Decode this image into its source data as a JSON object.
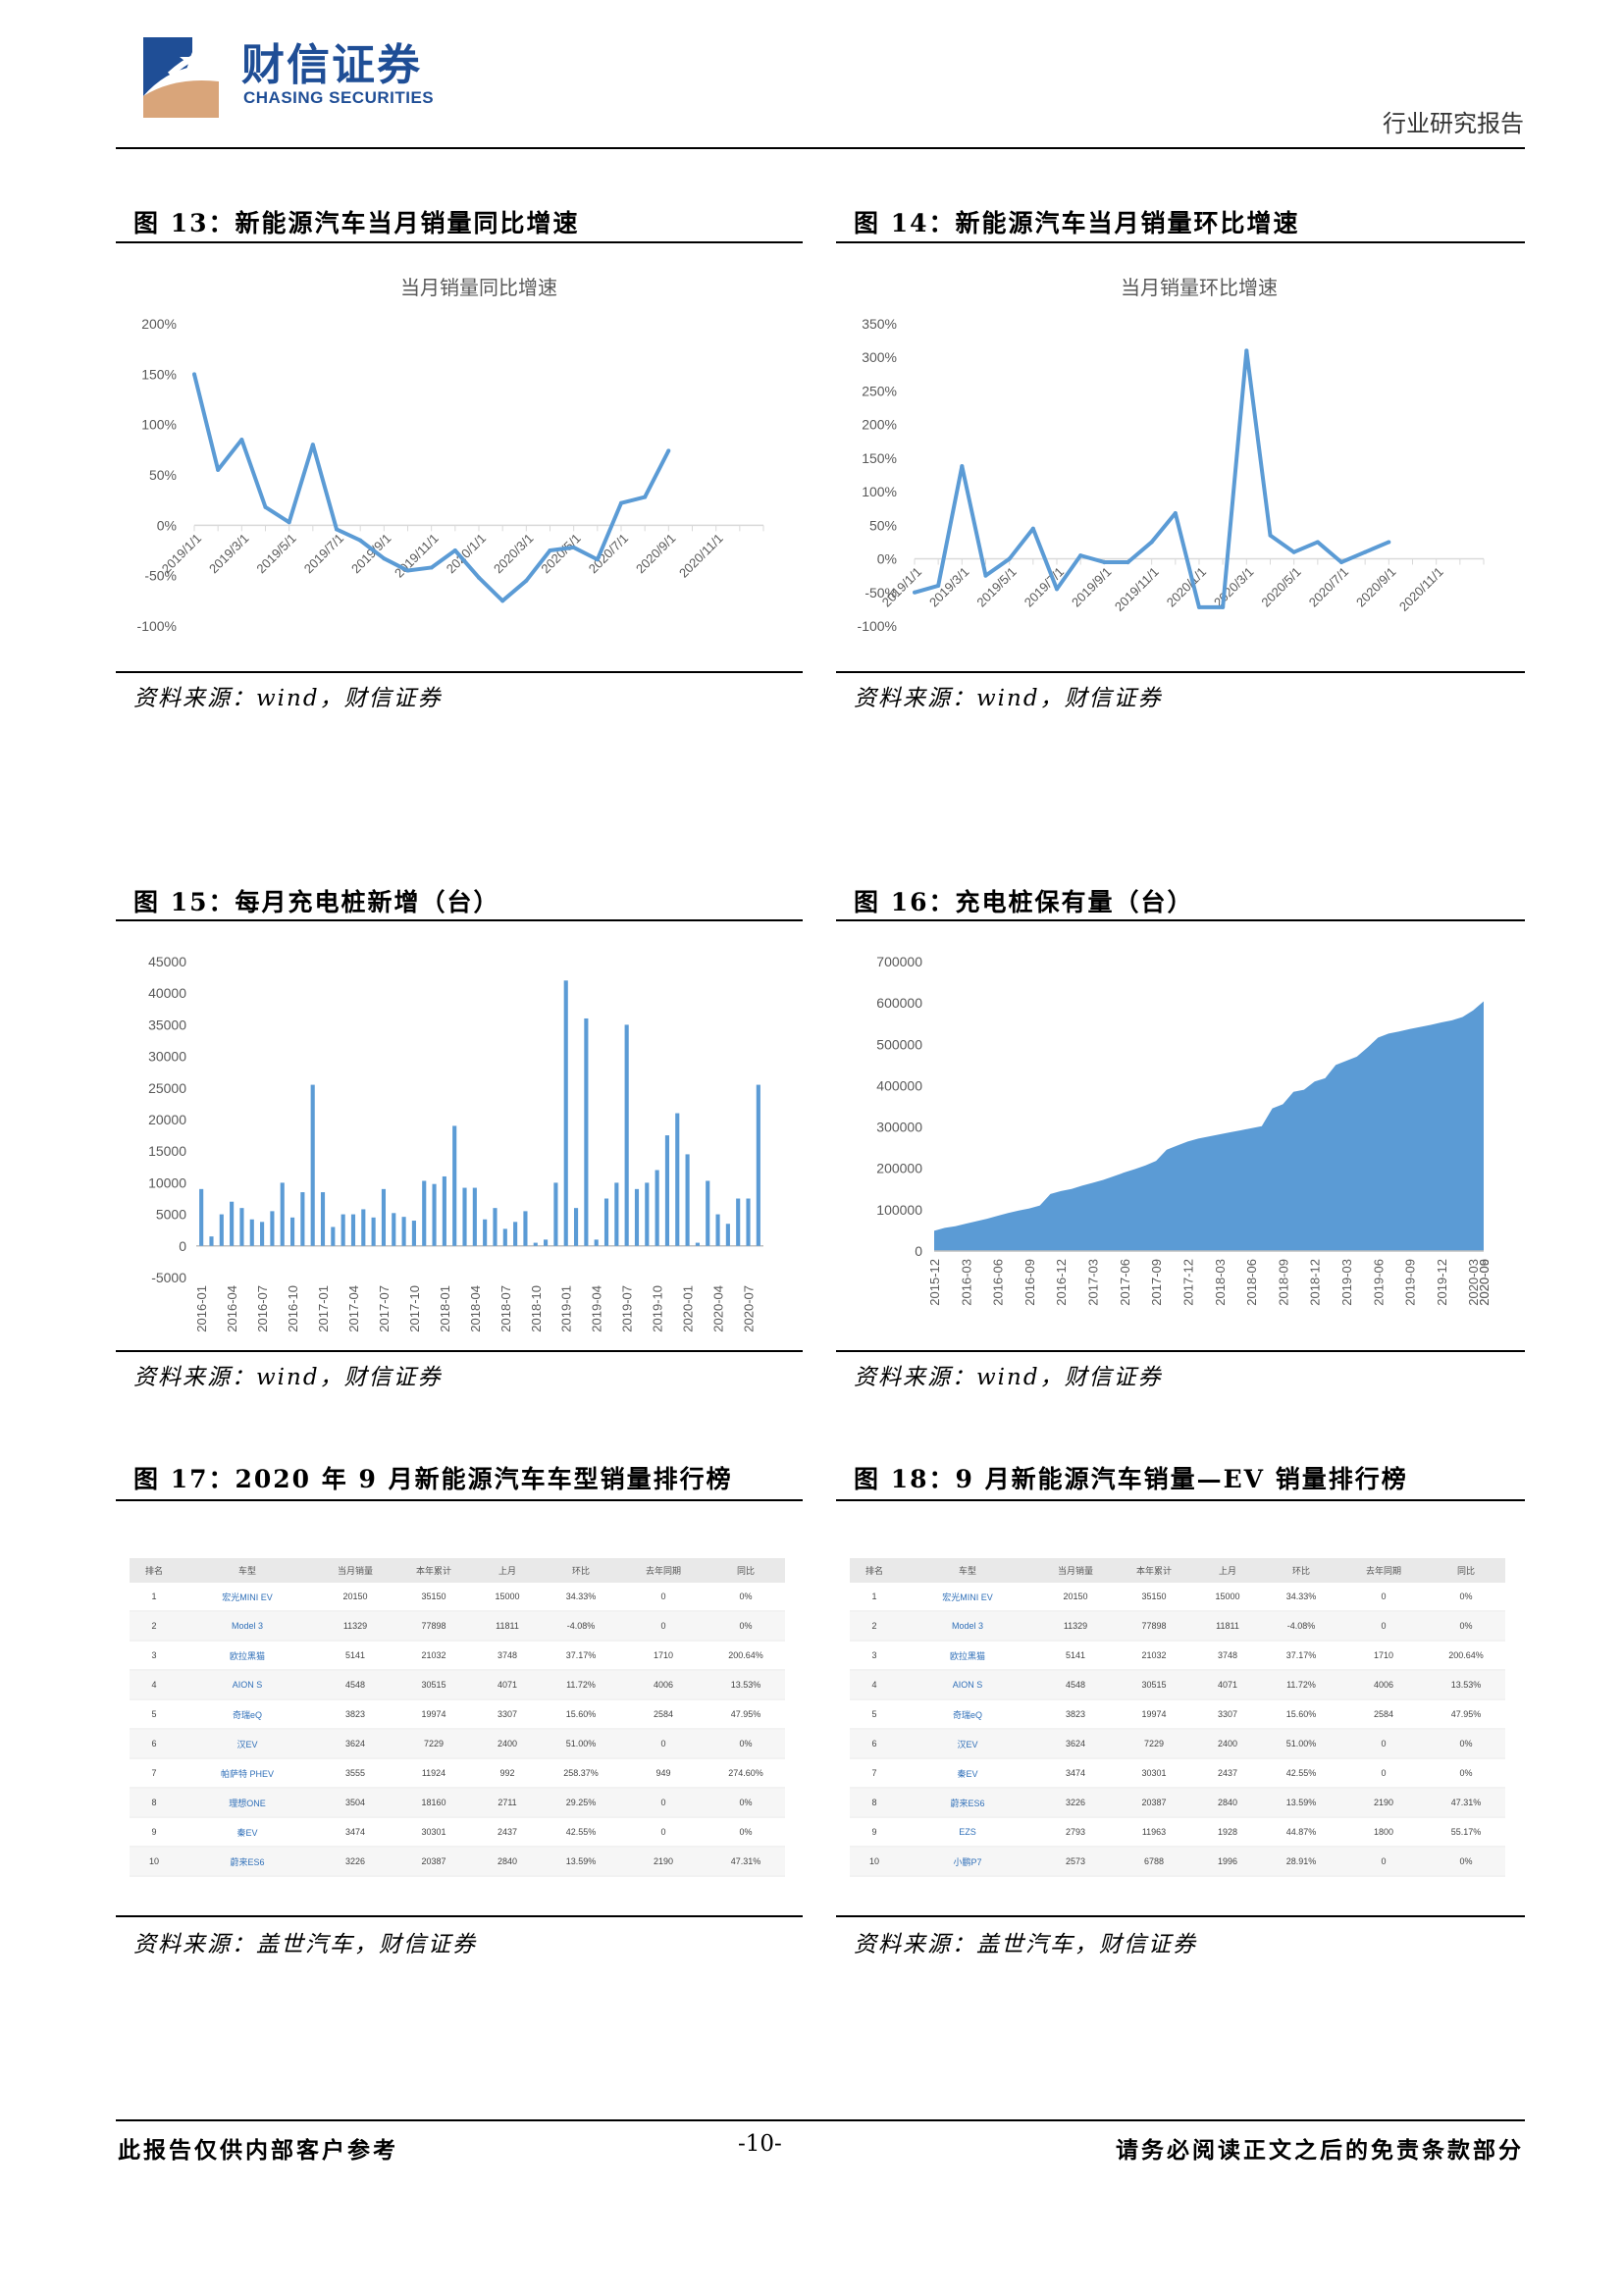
{
  "header": {
    "logo_cn": "财信证券",
    "logo_en": "CHASING SECURITIES",
    "report_type": "行业研究报告"
  },
  "figures": {
    "fig13": {
      "title": "图 13：新能源汽车当月销量同比增速",
      "source": "资料来源：wind，财信证券"
    },
    "fig14": {
      "title": "图 14：新能源汽车当月销量环比增速",
      "source": "资料来源：wind，财信证券"
    },
    "fig15": {
      "title": "图 15：每月充电桩新增（台）",
      "source": "资料来源：wind，财信证券"
    },
    "fig16": {
      "title": "图 16：充电桩保有量（台）",
      "source": "资料来源：wind，财信证券"
    },
    "fig17": {
      "title": "图 17：2020 年 9 月新能源汽车车型销量排行榜",
      "source": "资料来源：盖世汽车，财信证券"
    },
    "fig18": {
      "title": "图 18：9 月新能源汽车销量—EV 销量排行榜",
      "source": "资料来源：盖世汽车，财信证券"
    }
  },
  "chart_data": [
    {
      "id": "fig13",
      "type": "line",
      "title": "当月销量同比增速",
      "color": "#5b9bd5",
      "ylim": [
        -100,
        200
      ],
      "yticks": [
        -100,
        -50,
        0,
        50,
        100,
        150,
        200
      ],
      "ytick_labels": [
        "-100%",
        "-50%",
        "0%",
        "50%",
        "100%",
        "150%",
        "200%"
      ],
      "xtick_labels": [
        "2019/1/1",
        "2019/3/1",
        "2019/5/1",
        "2019/7/1",
        "2019/9/1",
        "2019/11/1",
        "2020/1/1",
        "2020/3/1",
        "2020/5/1",
        "2020/7/1",
        "2020/9/1",
        "2020/11/1"
      ],
      "n_slots": 24,
      "values": [
        150,
        55,
        85,
        18,
        3,
        80,
        -4,
        -15,
        -33,
        -45,
        -42,
        -25,
        -52,
        -75,
        -55,
        -25,
        -22,
        -34,
        22,
        28,
        74
      ]
    },
    {
      "id": "fig14",
      "type": "line",
      "title": "当月销量环比增速",
      "color": "#5b9bd5",
      "ylim": [
        -100,
        350
      ],
      "yticks": [
        -100,
        -50,
        0,
        50,
        100,
        150,
        200,
        250,
        300,
        350
      ],
      "ytick_labels": [
        "-100%",
        "-50%",
        "0%",
        "50%",
        "100%",
        "150%",
        "200%",
        "250%",
        "300%",
        "350%"
      ],
      "xtick_labels": [
        "2019/1/1",
        "2019/3/1",
        "2019/5/1",
        "2019/7/1",
        "2019/9/1",
        "2019/11/1",
        "2020/1/1",
        "2020/3/1",
        "2020/5/1",
        "2020/7/1",
        "2020/9/1",
        "2020/11/1"
      ],
      "n_slots": 24,
      "values": [
        -50,
        -40,
        138,
        -25,
        0,
        45,
        -45,
        5,
        -5,
        -5,
        25,
        68,
        -72,
        -72,
        310,
        35,
        10,
        25,
        -5,
        10,
        25
      ]
    },
    {
      "id": "fig15",
      "type": "bar",
      "title": "",
      "color": "#5b9bd5",
      "ylim": [
        -5000,
        45000
      ],
      "yticks": [
        -5000,
        0,
        5000,
        10000,
        15000,
        20000,
        25000,
        30000,
        35000,
        40000,
        45000
      ],
      "xtick_labels": [
        "2016-01",
        "2016-04",
        "2016-07",
        "2016-10",
        "2017-01",
        "2017-04",
        "2017-07",
        "2017-10",
        "2018-01",
        "2018-04",
        "2018-07",
        "2018-10",
        "2019-01",
        "2019-04",
        "2019-07",
        "2019-10",
        "2020-01",
        "2020-04",
        "2020-07"
      ],
      "values": [
        9000,
        1500,
        5000,
        7000,
        6000,
        4200,
        3800,
        5500,
        10000,
        4500,
        8500,
        25500,
        8500,
        3000,
        5000,
        5000,
        5800,
        4500,
        9000,
        5200,
        4600,
        4000,
        10300,
        9800,
        11000,
        19000,
        9200,
        9200,
        4200,
        6000,
        2700,
        3800,
        5500,
        500,
        1000,
        10000,
        42000,
        6000,
        36000,
        1000,
        7500,
        10000,
        35000,
        9000,
        10000,
        12000,
        17500,
        21000,
        14500,
        500,
        10300,
        5000,
        3500,
        7500,
        7500,
        25500
      ]
    },
    {
      "id": "fig16",
      "type": "area",
      "title": "",
      "color": "#5b9bd5",
      "ylim": [
        0,
        700000
      ],
      "yticks": [
        0,
        100000,
        200000,
        300000,
        400000,
        500000,
        600000,
        700000
      ],
      "xtick_labels": [
        "2015-12",
        "2016-03",
        "2016-06",
        "2016-09",
        "2016-12",
        "2017-03",
        "2017-06",
        "2017-09",
        "2017-12",
        "2018-03",
        "2018-06",
        "2018-09",
        "2018-12",
        "2019-03",
        "2019-06",
        "2019-09",
        "2019-12",
        "2020-03",
        "2020-06",
        "2020-09"
      ],
      "values": [
        49000,
        56000,
        60000,
        66000,
        72000,
        78000,
        85000,
        92000,
        98000,
        103000,
        110000,
        138000,
        145000,
        150000,
        158000,
        165000,
        172000,
        181000,
        190000,
        198000,
        207000,
        218000,
        245000,
        255000,
        265000,
        272000,
        277000,
        282000,
        287000,
        292000,
        297000,
        302000,
        345000,
        355000,
        385000,
        390000,
        410000,
        418000,
        450000,
        460000,
        470000,
        492000,
        516000,
        526000,
        531000,
        537000,
        542000,
        547000,
        553000,
        558000,
        566000,
        582000,
        604000
      ]
    }
  ],
  "table17": {
    "headers": [
      "排名",
      "车型",
      "当月销量",
      "本年累计",
      "上月",
      "环比",
      "去年同期",
      "同比"
    ],
    "rows": [
      [
        "1",
        "宏光MINI EV",
        "20150",
        "35150",
        "15000",
        "34.33%",
        "0",
        "0%"
      ],
      [
        "2",
        "Model 3",
        "11329",
        "77898",
        "11811",
        "-4.08%",
        "0",
        "0%"
      ],
      [
        "3",
        "欧拉黑猫",
        "5141",
        "21032",
        "3748",
        "37.17%",
        "1710",
        "200.64%"
      ],
      [
        "4",
        "AION S",
        "4548",
        "30515",
        "4071",
        "11.72%",
        "4006",
        "13.53%"
      ],
      [
        "5",
        "奇瑞eQ",
        "3823",
        "19974",
        "3307",
        "15.60%",
        "2584",
        "47.95%"
      ],
      [
        "6",
        "汉EV",
        "3624",
        "7229",
        "2400",
        "51.00%",
        "0",
        "0%"
      ],
      [
        "7",
        "帕萨特 PHEV",
        "3555",
        "11924",
        "992",
        "258.37%",
        "949",
        "274.60%"
      ],
      [
        "8",
        "理想ONE",
        "3504",
        "18160",
        "2711",
        "29.25%",
        "0",
        "0%"
      ],
      [
        "9",
        "秦EV",
        "3474",
        "30301",
        "2437",
        "42.55%",
        "0",
        "0%"
      ],
      [
        "10",
        "蔚来ES6",
        "3226",
        "20387",
        "2840",
        "13.59%",
        "2190",
        "47.31%"
      ]
    ]
  },
  "table18": {
    "headers": [
      "排名",
      "车型",
      "当月销量",
      "本年累计",
      "上月",
      "环比",
      "去年同期",
      "同比"
    ],
    "rows": [
      [
        "1",
        "宏光MINI EV",
        "20150",
        "35150",
        "15000",
        "34.33%",
        "0",
        "0%"
      ],
      [
        "2",
        "Model 3",
        "11329",
        "77898",
        "11811",
        "-4.08%",
        "0",
        "0%"
      ],
      [
        "3",
        "欧拉黑猫",
        "5141",
        "21032",
        "3748",
        "37.17%",
        "1710",
        "200.64%"
      ],
      [
        "4",
        "AION S",
        "4548",
        "30515",
        "4071",
        "11.72%",
        "4006",
        "13.53%"
      ],
      [
        "5",
        "奇瑞eQ",
        "3823",
        "19974",
        "3307",
        "15.60%",
        "2584",
        "47.95%"
      ],
      [
        "6",
        "汉EV",
        "3624",
        "7229",
        "2400",
        "51.00%",
        "0",
        "0%"
      ],
      [
        "7",
        "秦EV",
        "3474",
        "30301",
        "2437",
        "42.55%",
        "0",
        "0%"
      ],
      [
        "8",
        "蔚来ES6",
        "3226",
        "20387",
        "2840",
        "13.59%",
        "2190",
        "47.31%"
      ],
      [
        "9",
        "EZS",
        "2793",
        "11963",
        "1928",
        "44.87%",
        "1800",
        "55.17%"
      ],
      [
        "10",
        "小鹏P7",
        "2573",
        "6788",
        "1996",
        "28.91%",
        "0",
        "0%"
      ]
    ]
  },
  "footer": {
    "left": "此报告仅供内部客户参考",
    "center": "-10-",
    "right": "请务必阅读正文之后的免责条款部分"
  }
}
